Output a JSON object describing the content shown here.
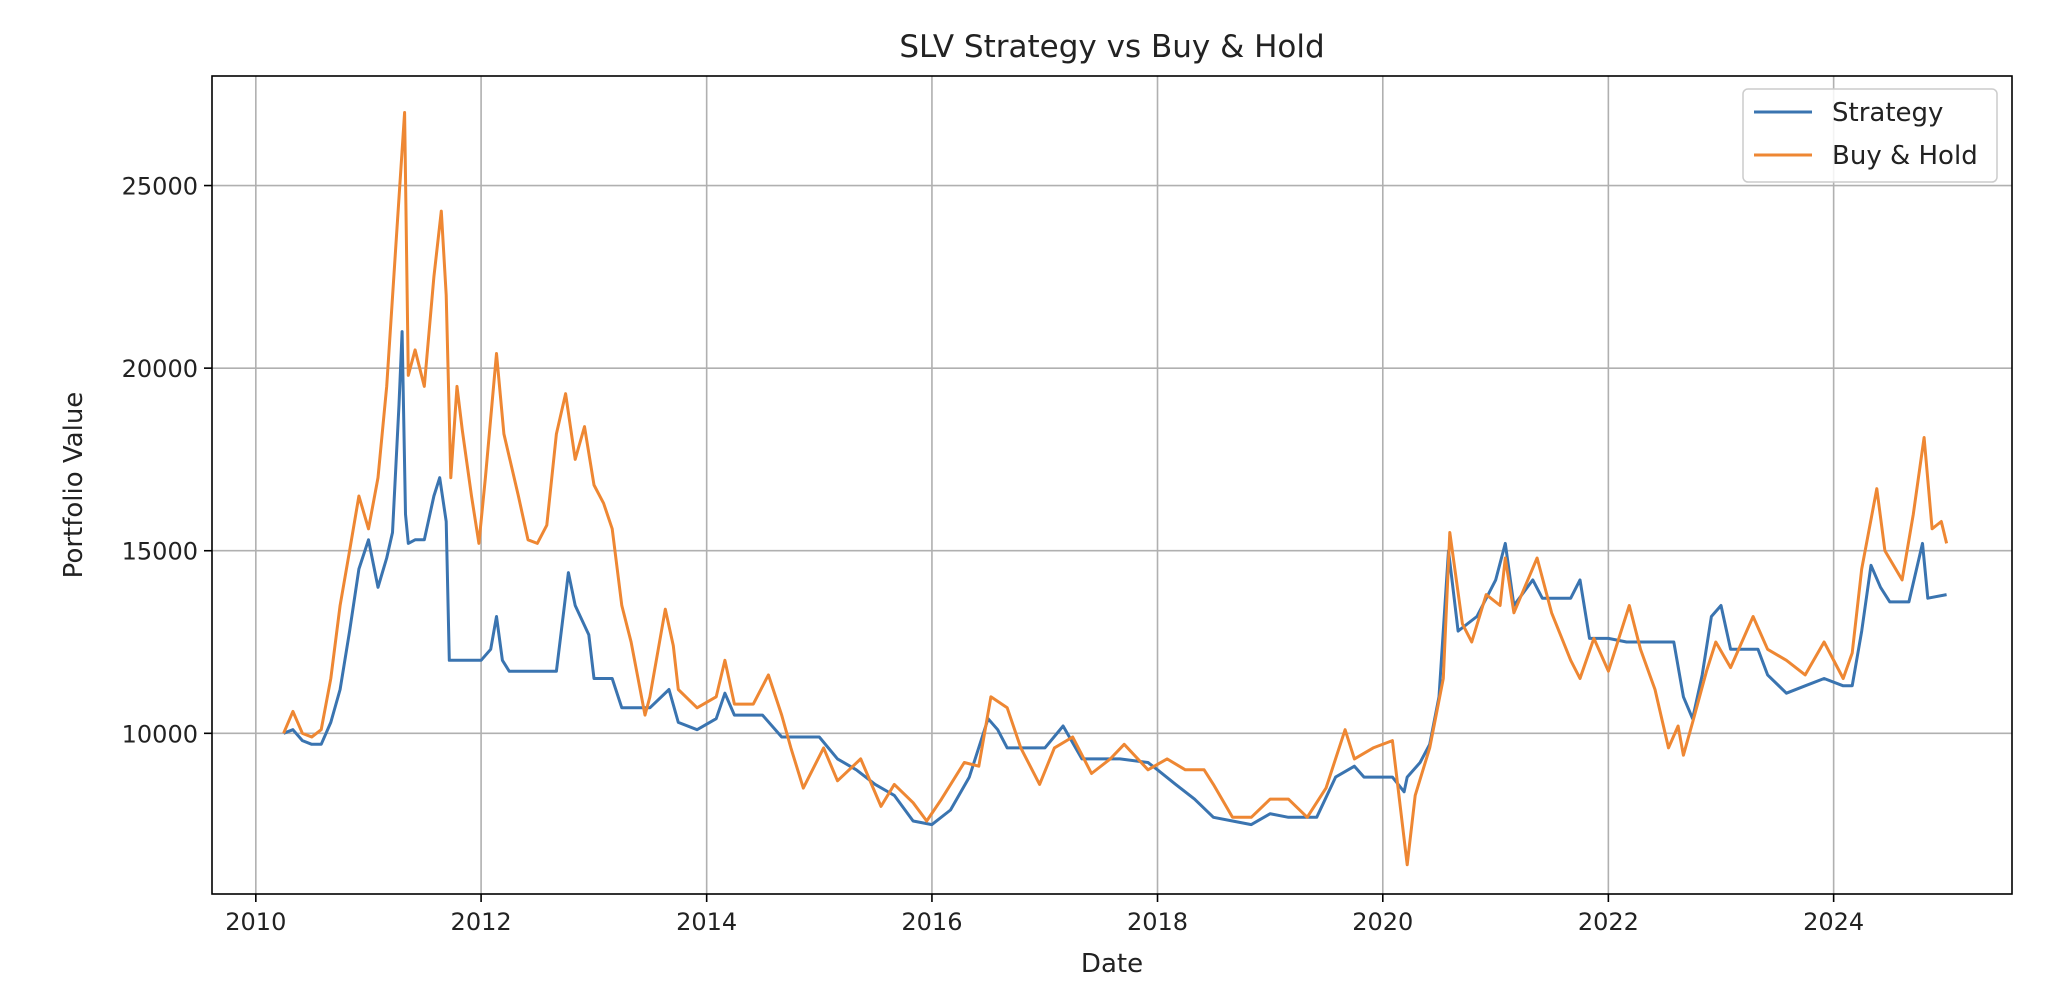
{
  "chart_data": {
    "type": "line",
    "title": "SLV Strategy vs Buy & Hold",
    "xlabel": "Date",
    "ylabel": "Portfolio Value",
    "xlim": [
      "2009-08-12",
      "2025-08-01"
    ],
    "ylim": [
      5600,
      28000
    ],
    "x_ticks": [
      "2010",
      "2012",
      "2014",
      "2016",
      "2018",
      "2020",
      "2022",
      "2024"
    ],
    "y_ticks": [
      10000,
      15000,
      20000,
      25000
    ],
    "grid": true,
    "legend": "top-right",
    "colors": {
      "strategy": "#3a74b0",
      "buy_hold": "#ee8733",
      "grid": "#b0b0b0",
      "axes": "#000000"
    },
    "series": [
      {
        "name": "Strategy",
        "color": "#3a74b0",
        "points": [
          [
            "2010-04-01",
            10000
          ],
          [
            "2010-05-01",
            10100
          ],
          [
            "2010-06-01",
            9800
          ],
          [
            "2010-07-01",
            9700
          ],
          [
            "2010-08-01",
            9700
          ],
          [
            "2010-09-01",
            10300
          ],
          [
            "2010-10-01",
            11200
          ],
          [
            "2010-11-01",
            12800
          ],
          [
            "2010-12-01",
            14500
          ],
          [
            "2011-01-01",
            15300
          ],
          [
            "2011-02-01",
            14000
          ],
          [
            "2011-03-01",
            14800
          ],
          [
            "2011-03-20",
            15500
          ],
          [
            "2011-04-10",
            19000
          ],
          [
            "2011-04-20",
            21000
          ],
          [
            "2011-05-01",
            16000
          ],
          [
            "2011-05-10",
            15200
          ],
          [
            "2011-06-01",
            15300
          ],
          [
            "2011-07-01",
            15300
          ],
          [
            "2011-08-01",
            16500
          ],
          [
            "2011-08-20",
            17000
          ],
          [
            "2011-09-10",
            15800
          ],
          [
            "2011-09-20",
            12000
          ],
          [
            "2011-12-01",
            12000
          ],
          [
            "2012-01-01",
            12000
          ],
          [
            "2012-02-01",
            12300
          ],
          [
            "2012-02-20",
            13200
          ],
          [
            "2012-03-10",
            12000
          ],
          [
            "2012-04-01",
            11700
          ],
          [
            "2012-09-01",
            11700
          ],
          [
            "2012-09-20",
            13000
          ],
          [
            "2012-10-10",
            14400
          ],
          [
            "2012-11-01",
            13500
          ],
          [
            "2012-12-15",
            12700
          ],
          [
            "2013-01-01",
            11500
          ],
          [
            "2013-03-01",
            11500
          ],
          [
            "2013-04-01",
            10700
          ],
          [
            "2013-07-01",
            10700
          ],
          [
            "2013-09-01",
            11200
          ],
          [
            "2013-10-01",
            10300
          ],
          [
            "2013-12-01",
            10100
          ],
          [
            "2014-02-01",
            10400
          ],
          [
            "2014-03-01",
            11100
          ],
          [
            "2014-04-01",
            10500
          ],
          [
            "2014-07-01",
            10500
          ],
          [
            "2014-09-01",
            9900
          ],
          [
            "2015-01-01",
            9900
          ],
          [
            "2015-03-01",
            9300
          ],
          [
            "2015-05-01",
            9000
          ],
          [
            "2015-07-01",
            8600
          ],
          [
            "2015-09-01",
            8300
          ],
          [
            "2015-11-01",
            7600
          ],
          [
            "2016-01-01",
            7500
          ],
          [
            "2016-03-01",
            7900
          ],
          [
            "2016-05-01",
            8800
          ],
          [
            "2016-07-01",
            10400
          ],
          [
            "2016-08-01",
            10100
          ],
          [
            "2016-09-01",
            9600
          ],
          [
            "2017-01-01",
            9600
          ],
          [
            "2017-03-01",
            10200
          ],
          [
            "2017-05-01",
            9300
          ],
          [
            "2017-07-01",
            9300
          ],
          [
            "2017-09-01",
            9300
          ],
          [
            "2017-12-01",
            9200
          ],
          [
            "2018-01-01",
            9000
          ],
          [
            "2018-03-01",
            8600
          ],
          [
            "2018-05-01",
            8200
          ],
          [
            "2018-07-01",
            7700
          ],
          [
            "2018-09-01",
            7600
          ],
          [
            "2018-11-01",
            7500
          ],
          [
            "2019-01-01",
            7800
          ],
          [
            "2019-03-01",
            7700
          ],
          [
            "2019-06-01",
            7700
          ],
          [
            "2019-08-01",
            8800
          ],
          [
            "2019-10-01",
            9100
          ],
          [
            "2019-11-01",
            8800
          ],
          [
            "2020-02-01",
            8800
          ],
          [
            "2020-03-10",
            8400
          ],
          [
            "2020-03-20",
            8800
          ],
          [
            "2020-05-01",
            9200
          ],
          [
            "2020-06-01",
            9700
          ],
          [
            "2020-07-01",
            11000
          ],
          [
            "2020-08-01",
            15000
          ],
          [
            "2020-09-01",
            12800
          ],
          [
            "2020-11-01",
            13200
          ],
          [
            "2021-01-01",
            14200
          ],
          [
            "2021-02-01",
            15200
          ],
          [
            "2021-03-01",
            13500
          ],
          [
            "2021-05-01",
            14200
          ],
          [
            "2021-06-01",
            13700
          ],
          [
            "2021-09-01",
            13700
          ],
          [
            "2021-10-01",
            14200
          ],
          [
            "2021-11-01",
            12600
          ],
          [
            "2022-01-01",
            12600
          ],
          [
            "2022-03-01",
            12500
          ],
          [
            "2022-08-01",
            12500
          ],
          [
            "2022-09-01",
            11000
          ],
          [
            "2022-10-01",
            10400
          ],
          [
            "2022-11-01",
            11600
          ],
          [
            "2022-12-01",
            13200
          ],
          [
            "2023-01-01",
            13500
          ],
          [
            "2023-02-01",
            12300
          ],
          [
            "2023-05-01",
            12300
          ],
          [
            "2023-06-01",
            11600
          ],
          [
            "2023-08-01",
            11100
          ],
          [
            "2023-10-01",
            11300
          ],
          [
            "2023-12-01",
            11500
          ],
          [
            "2024-02-01",
            11300
          ],
          [
            "2024-03-01",
            11300
          ],
          [
            "2024-04-01",
            12800
          ],
          [
            "2024-05-01",
            14600
          ],
          [
            "2024-06-01",
            14000
          ],
          [
            "2024-07-01",
            13600
          ],
          [
            "2024-09-01",
            13600
          ],
          [
            "2024-10-15",
            15200
          ],
          [
            "2024-11-01",
            13700
          ],
          [
            "2025-01-01",
            13800
          ]
        ]
      },
      {
        "name": "Buy & Hold",
        "color": "#ee8733",
        "points": [
          [
            "2010-04-01",
            10000
          ],
          [
            "2010-05-01",
            10600
          ],
          [
            "2010-06-01",
            10000
          ],
          [
            "2010-07-01",
            9900
          ],
          [
            "2010-08-01",
            10100
          ],
          [
            "2010-09-01",
            11500
          ],
          [
            "2010-10-01",
            13500
          ],
          [
            "2010-11-01",
            15000
          ],
          [
            "2010-12-01",
            16500
          ],
          [
            "2011-01-01",
            15600
          ],
          [
            "2011-02-01",
            17000
          ],
          [
            "2011-03-01",
            19500
          ],
          [
            "2011-04-01",
            23500
          ],
          [
            "2011-04-28",
            27000
          ],
          [
            "2011-05-10",
            19800
          ],
          [
            "2011-06-01",
            20500
          ],
          [
            "2011-07-01",
            19500
          ],
          [
            "2011-08-01",
            22500
          ],
          [
            "2011-08-25",
            24300
          ],
          [
            "2011-09-10",
            22000
          ],
          [
            "2011-09-25",
            17000
          ],
          [
            "2011-10-15",
            19500
          ],
          [
            "2011-11-01",
            18300
          ],
          [
            "2011-12-01",
            16500
          ],
          [
            "2011-12-25",
            15200
          ],
          [
            "2012-01-15",
            17000
          ],
          [
            "2012-02-20",
            20400
          ],
          [
            "2012-03-15",
            18200
          ],
          [
            "2012-05-01",
            16500
          ],
          [
            "2012-06-01",
            15300
          ],
          [
            "2012-07-01",
            15200
          ],
          [
            "2012-08-01",
            15700
          ],
          [
            "2012-09-01",
            18200
          ],
          [
            "2012-10-01",
            19300
          ],
          [
            "2012-11-01",
            17500
          ],
          [
            "2012-12-01",
            18400
          ],
          [
            "2013-01-01",
            16800
          ],
          [
            "2013-02-01",
            16300
          ],
          [
            "2013-03-01",
            15600
          ],
          [
            "2013-04-01",
            13500
          ],
          [
            "2013-05-01",
            12500
          ],
          [
            "2013-06-15",
            10500
          ],
          [
            "2013-07-01",
            11000
          ],
          [
            "2013-08-20",
            13400
          ],
          [
            "2013-09-15",
            12400
          ],
          [
            "2013-10-01",
            11200
          ],
          [
            "2013-12-01",
            10700
          ],
          [
            "2014-02-01",
            11000
          ],
          [
            "2014-03-01",
            12000
          ],
          [
            "2014-04-01",
            10800
          ],
          [
            "2014-06-01",
            10800
          ],
          [
            "2014-07-20",
            11600
          ],
          [
            "2014-09-01",
            10500
          ],
          [
            "2014-10-01",
            9600
          ],
          [
            "2014-11-10",
            8500
          ],
          [
            "2015-01-15",
            9600
          ],
          [
            "2015-03-01",
            8700
          ],
          [
            "2015-05-15",
            9300
          ],
          [
            "2015-07-20",
            8000
          ],
          [
            "2015-09-01",
            8600
          ],
          [
            "2015-11-01",
            8100
          ],
          [
            "2015-12-15",
            7600
          ],
          [
            "2016-02-01",
            8200
          ],
          [
            "2016-04-15",
            9200
          ],
          [
            "2016-06-01",
            9100
          ],
          [
            "2016-07-10",
            11000
          ],
          [
            "2016-09-01",
            10700
          ],
          [
            "2016-10-15",
            9600
          ],
          [
            "2016-12-15",
            8600
          ],
          [
            "2017-02-01",
            9600
          ],
          [
            "2017-04-01",
            9900
          ],
          [
            "2017-06-01",
            8900
          ],
          [
            "2017-08-01",
            9300
          ],
          [
            "2017-09-15",
            9700
          ],
          [
            "2017-12-01",
            9000
          ],
          [
            "2018-02-01",
            9300
          ],
          [
            "2018-04-01",
            9000
          ],
          [
            "2018-06-01",
            9000
          ],
          [
            "2018-07-01",
            8600
          ],
          [
            "2018-09-01",
            7700
          ],
          [
            "2018-11-01",
            7700
          ],
          [
            "2019-01-01",
            8200
          ],
          [
            "2019-03-01",
            8200
          ],
          [
            "2019-05-01",
            7700
          ],
          [
            "2019-07-01",
            8500
          ],
          [
            "2019-09-01",
            10100
          ],
          [
            "2019-10-01",
            9300
          ],
          [
            "2019-12-01",
            9600
          ],
          [
            "2020-02-01",
            9800
          ],
          [
            "2020-03-20",
            6400
          ],
          [
            "2020-04-15",
            8300
          ],
          [
            "2020-06-01",
            9600
          ],
          [
            "2020-07-15",
            11500
          ],
          [
            "2020-08-05",
            15500
          ],
          [
            "2020-09-15",
            13000
          ],
          [
            "2020-10-15",
            12500
          ],
          [
            "2020-12-01",
            13800
          ],
          [
            "2021-01-15",
            13500
          ],
          [
            "2021-02-01",
            14800
          ],
          [
            "2021-03-01",
            13300
          ],
          [
            "2021-05-15",
            14800
          ],
          [
            "2021-07-01",
            13300
          ],
          [
            "2021-09-01",
            12000
          ],
          [
            "2021-10-01",
            11500
          ],
          [
            "2021-11-15",
            12600
          ],
          [
            "2022-01-01",
            11700
          ],
          [
            "2022-03-10",
            13500
          ],
          [
            "2022-04-15",
            12300
          ],
          [
            "2022-06-01",
            11200
          ],
          [
            "2022-07-15",
            9600
          ],
          [
            "2022-08-15",
            10200
          ],
          [
            "2022-09-01",
            9400
          ],
          [
            "2022-10-01",
            10300
          ],
          [
            "2022-11-15",
            11700
          ],
          [
            "2022-12-15",
            12500
          ],
          [
            "2023-02-01",
            11800
          ],
          [
            "2023-04-15",
            13200
          ],
          [
            "2023-06-01",
            12300
          ],
          [
            "2023-08-01",
            12000
          ],
          [
            "2023-10-01",
            11600
          ],
          [
            "2023-12-01",
            12500
          ],
          [
            "2024-02-01",
            11500
          ],
          [
            "2024-03-01",
            12200
          ],
          [
            "2024-04-01",
            14500
          ],
          [
            "2024-05-20",
            16700
          ],
          [
            "2024-06-15",
            15000
          ],
          [
            "2024-08-10",
            14200
          ],
          [
            "2024-09-15",
            16000
          ],
          [
            "2024-10-20",
            18100
          ],
          [
            "2024-11-15",
            15600
          ],
          [
            "2024-12-15",
            15800
          ],
          [
            "2025-01-01",
            15200
          ]
        ]
      }
    ]
  }
}
